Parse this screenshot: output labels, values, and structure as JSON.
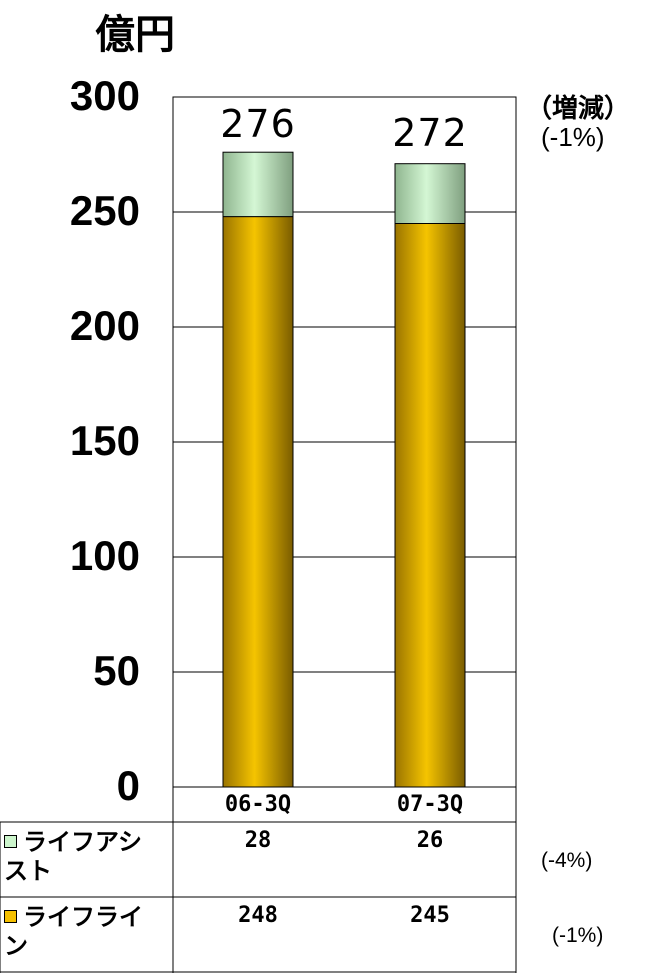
{
  "chart_data": {
    "type": "bar",
    "stacked": true,
    "unit_label": "億円",
    "categories": [
      "06-3Q",
      "07-3Q"
    ],
    "ylim": [
      0,
      300
    ],
    "yticks": [
      0,
      50,
      100,
      150,
      200,
      250,
      300
    ],
    "grid": true,
    "series": [
      {
        "name": "ライフライン",
        "values": [
          248,
          245
        ],
        "color": "#F5C000",
        "change": "(-1%)"
      },
      {
        "name": "ライフアシスト",
        "values": [
          28,
          26
        ],
        "color": "#CCF5CC",
        "change": "(-4%)"
      }
    ],
    "totals": [
      276,
      272
    ],
    "change_header": "（増減）",
    "change_total": "(-1%)"
  }
}
